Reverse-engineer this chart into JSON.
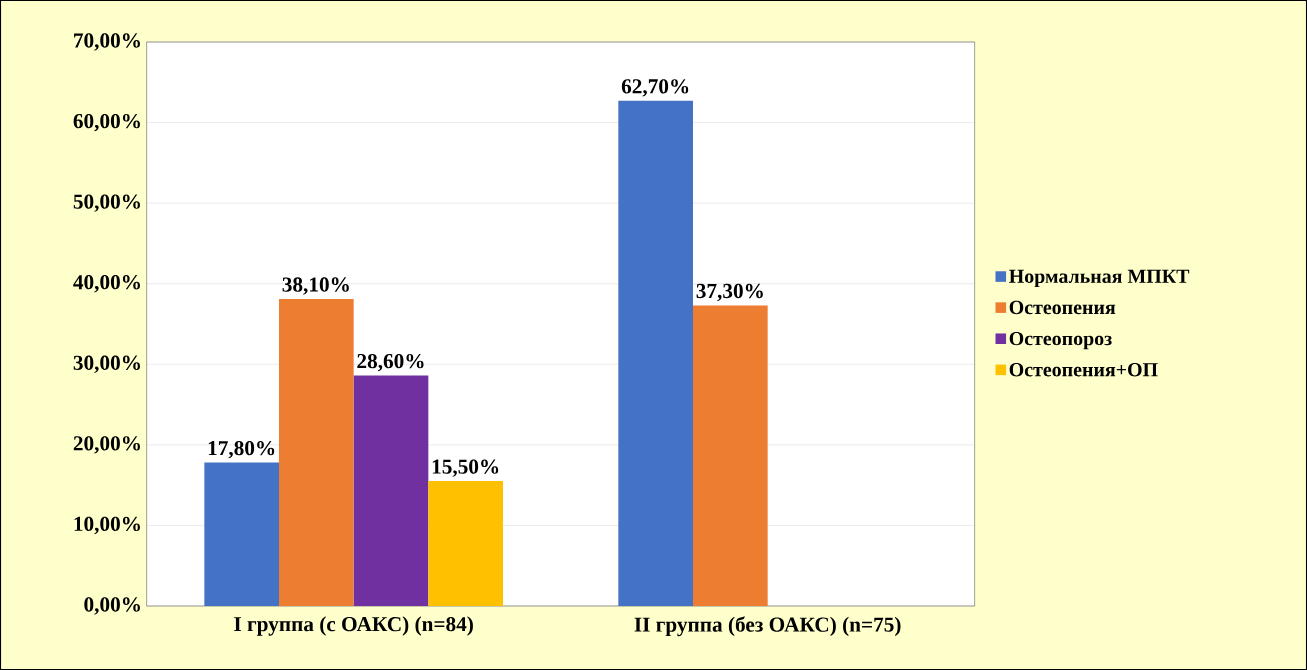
{
  "chart_data": {
    "type": "bar",
    "categories": [
      "I группа (с ОАКС) (n=84)",
      "II группа (без ОАКС) (n=75)"
    ],
    "series": [
      {
        "name": "Нормальная МПКТ",
        "color": "#4472c4",
        "values": [
          17.8,
          62.7
        ],
        "value_labels": [
          "17,80%",
          "62,70%"
        ]
      },
      {
        "name": "Остеопения",
        "color": "#ed7d31",
        "values": [
          38.1,
          37.3
        ],
        "value_labels": [
          "38,10%",
          "37,30%"
        ]
      },
      {
        "name": "Остеопороз",
        "color": "#7030a0",
        "values": [
          28.6,
          null
        ],
        "value_labels": [
          "28,60%",
          null
        ]
      },
      {
        "name": "Остеопения+ОП",
        "color": "#ffc000",
        "values": [
          15.5,
          null
        ],
        "value_labels": [
          "15,50%",
          null
        ]
      }
    ],
    "ylim": [
      0,
      70
    ],
    "yticks": [
      {
        "value": 0,
        "label": "0,00%"
      },
      {
        "value": 10,
        "label": "10,00%"
      },
      {
        "value": 20,
        "label": "20,00%"
      },
      {
        "value": 30,
        "label": "30,00%"
      },
      {
        "value": 40,
        "label": "40,00%"
      },
      {
        "value": 50,
        "label": "50,00%"
      },
      {
        "value": 60,
        "label": "60,00%"
      },
      {
        "value": 70,
        "label": "70,00%"
      }
    ],
    "grid": "y",
    "legend": "right"
  }
}
